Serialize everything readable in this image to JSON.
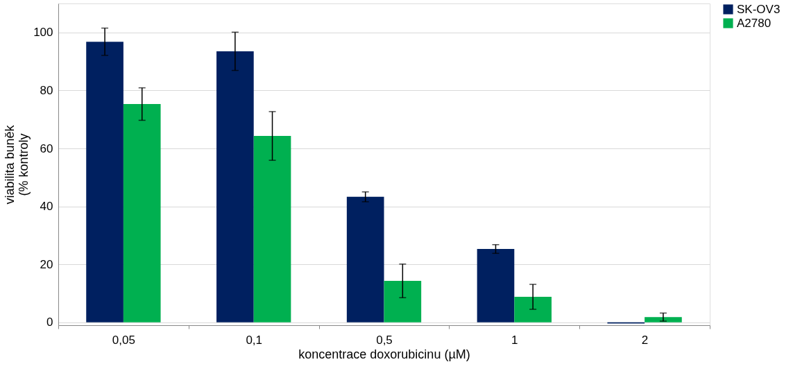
{
  "chart_data": {
    "type": "bar",
    "xlabel": "koncentrace doxorubicinu (µM)",
    "ylabel": "viabilita buněk\n(% kontroly",
    "categories": [
      "0,05",
      "0,1",
      "0,5",
      "1",
      "2"
    ],
    "series": [
      {
        "name": "SK-OV3",
        "color": "#002060",
        "values": [
          96.8,
          93.5,
          43.3,
          25.3,
          -0.4
        ],
        "errors": [
          4.7,
          6.6,
          1.7,
          1.5,
          null
        ]
      },
      {
        "name": "A2780",
        "color": "#00b050",
        "values": [
          75.3,
          64.3,
          14.3,
          8.8,
          1.8
        ],
        "errors": [
          5.6,
          8.4,
          5.8,
          4.3,
          1.4
        ]
      }
    ],
    "ylim": [
      -1,
      110
    ],
    "yticks": [
      0,
      20,
      40,
      60,
      80,
      100
    ],
    "grid": "y",
    "legend": "right"
  }
}
